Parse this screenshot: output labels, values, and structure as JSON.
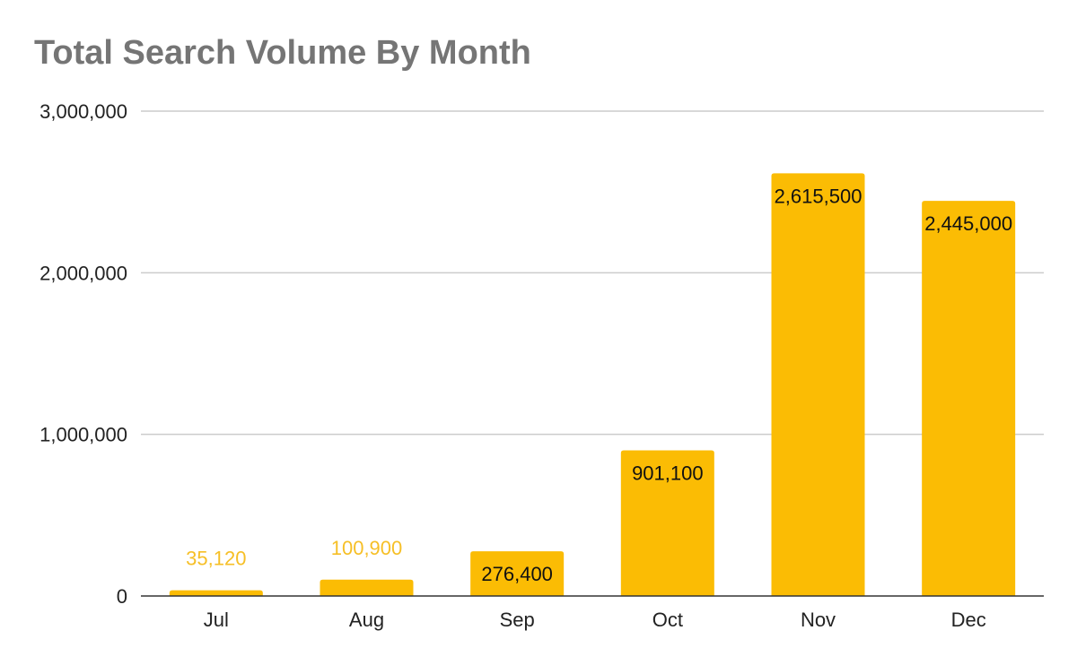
{
  "chart_data": {
    "type": "bar",
    "title": "Total Search Volume By Month",
    "xlabel": "",
    "ylabel": "",
    "categories": [
      "Jul",
      "Aug",
      "Sep",
      "Oct",
      "Nov",
      "Dec"
    ],
    "values": [
      35120,
      100900,
      276400,
      901100,
      2615500,
      2445000
    ],
    "data_labels": [
      "35,120",
      "100,900",
      "276,400",
      "901,100",
      "2,615,500",
      "2,445,000"
    ],
    "ylim": [
      0,
      3000000
    ],
    "y_ticks": [
      0,
      1000000,
      2000000,
      3000000
    ],
    "y_tick_labels": [
      "0",
      "1,000,000",
      "2,000,000",
      "3,000,000"
    ],
    "grid": true,
    "legend": "none",
    "colors": {
      "bar": "#fbbc04",
      "label_outside": "#f6bf26",
      "label_inside": "#111111",
      "grid": "#cccccc",
      "axis": "#333333",
      "title": "#757575"
    }
  }
}
